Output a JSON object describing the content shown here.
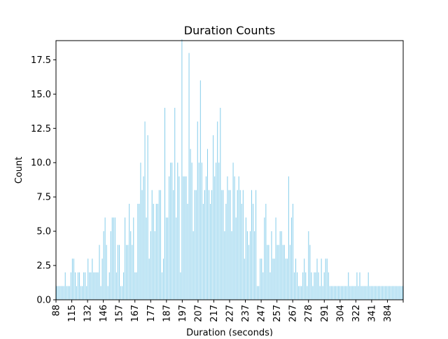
{
  "chart_data": {
    "type": "bar",
    "title": "Duration Counts",
    "xlabel": "Duration (seconds)",
    "ylabel": "Count",
    "ylim": [
      0,
      18.9
    ],
    "y_ticks": [
      0.0,
      2.5,
      5.0,
      7.5,
      10.0,
      12.5,
      15.0,
      17.5
    ],
    "y_tick_labels": [
      "0.0",
      "2.5",
      "5.0",
      "7.5",
      "10.0",
      "12.5",
      "15.0",
      "17.5"
    ],
    "x_tick_labels": [
      "88",
      "115",
      "132",
      "146",
      "157",
      "167",
      "177",
      "187",
      "197",
      "207",
      "217",
      "227",
      "237",
      "247",
      "257",
      "267",
      "278",
      "291",
      "304",
      "322",
      "341",
      "384"
    ],
    "bar_color": "#87ceeb",
    "grid": false,
    "values": [
      1,
      1,
      1,
      1,
      1,
      1,
      2,
      1,
      1,
      1,
      2,
      3,
      3,
      2,
      1,
      2,
      2,
      1,
      1,
      2,
      2,
      1,
      3,
      2,
      2,
      3,
      2,
      2,
      2,
      2,
      4,
      1,
      3,
      5,
      6,
      4,
      1,
      2,
      5,
      6,
      6,
      6,
      2,
      4,
      4,
      1,
      1,
      2,
      6,
      4,
      4,
      7,
      5,
      4,
      6,
      2,
      2,
      7,
      7,
      10,
      8,
      9,
      13,
      6,
      12,
      3,
      5,
      8,
      7,
      5,
      7,
      7,
      8,
      8,
      2,
      3,
      14,
      6,
      6,
      9,
      10,
      10,
      8,
      14,
      6,
      10,
      9,
      2,
      19,
      9,
      9,
      9,
      7,
      18,
      11,
      10,
      5,
      8,
      8,
      13,
      10,
      16,
      10,
      7,
      8,
      9,
      11,
      8,
      7,
      8,
      12,
      9,
      10,
      13,
      10,
      14,
      8,
      8,
      5,
      7,
      9,
      8,
      8,
      5,
      10,
      9,
      6,
      8,
      9,
      8,
      7,
      8,
      3,
      6,
      5,
      4,
      5,
      8,
      7,
      5,
      8,
      1,
      1,
      3,
      3,
      2,
      6,
      7,
      4,
      4,
      2,
      5,
      3,
      3,
      6,
      4,
      4,
      5,
      5,
      4,
      4,
      3,
      3,
      9,
      4,
      6,
      7,
      2,
      3,
      2,
      1,
      1,
      1,
      2,
      3,
      2,
      1,
      5,
      4,
      2,
      1,
      2,
      2,
      3,
      2,
      1,
      3,
      1,
      2,
      3,
      3,
      2,
      1,
      1,
      1,
      1,
      1,
      1,
      1,
      1,
      1,
      1,
      1,
      1,
      1,
      2,
      1,
      1,
      1,
      1,
      1,
      2,
      1,
      2,
      1,
      1,
      1,
      1,
      1,
      2,
      1,
      1,
      1,
      1,
      1,
      1,
      1,
      1,
      1,
      1,
      1,
      1,
      1,
      1,
      1,
      1,
      1,
      1,
      1,
      1,
      1,
      1,
      1,
      1
    ]
  }
}
